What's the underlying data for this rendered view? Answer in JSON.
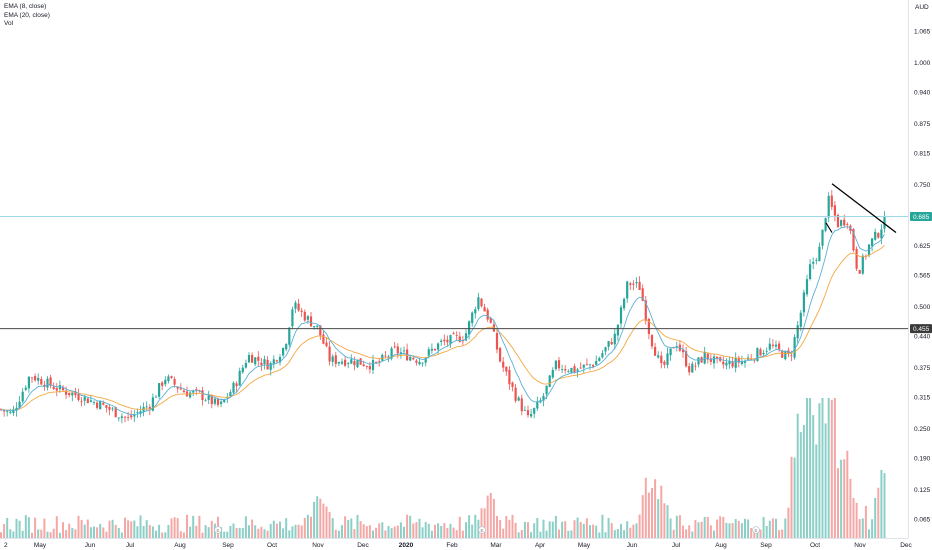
{
  "legend": {
    "ema8": "EMA (8, close)",
    "ema20": "EMA (20, close)",
    "vol": "Vol"
  },
  "currency": "AUD",
  "colors": {
    "up": "#26a69a",
    "down": "#ef5350",
    "vol_up": "#8ccfc7",
    "vol_down": "#f5a7a6",
    "ema8": "#5ab1d6",
    "ema20": "#f4a742",
    "current_line": "#9ed9e6",
    "hline": "#4a4a4a",
    "trendline": "#000000"
  },
  "chart_data": {
    "type": "candlestick",
    "ylabel_currency": "AUD",
    "y_ticks": [
      "1.065",
      "1.000",
      "0.940",
      "0.875",
      "0.815",
      "0.750",
      "0.625",
      "0.565",
      "0.500",
      "0.440",
      "0.375",
      "0.315",
      "0.250",
      "0.190",
      "0.125",
      "0.065"
    ],
    "y_tick_values": [
      1.065,
      1.0,
      0.94,
      0.875,
      0.815,
      0.75,
      0.625,
      0.565,
      0.5,
      0.44,
      0.375,
      0.315,
      0.25,
      0.19,
      0.125,
      0.065
    ],
    "x_ticks": [
      "2",
      "May",
      "Jun",
      "Jul",
      "Aug",
      "Sep",
      "Oct",
      "Nov",
      "Dec",
      "2020",
      "Feb",
      "Mar",
      "Apr",
      "May",
      "Jun",
      "Jul",
      "Aug",
      "Sep",
      "Oct",
      "Nov",
      "Dec"
    ],
    "x_tick_bold": [
      false,
      false,
      false,
      false,
      false,
      false,
      false,
      false,
      false,
      true,
      false,
      false,
      false,
      false,
      false,
      false,
      false,
      false,
      false,
      false,
      false
    ],
    "current_price": {
      "label": "0.685",
      "value": 0.685
    },
    "horizontal_line": {
      "label": "0.455",
      "value": 0.455
    },
    "trendlines": [
      {
        "from": [
          "Oct 2020",
          0.752
        ],
        "to": [
          "Nov 2020",
          0.655
        ]
      },
      {
        "from": [
          "Oct 2020",
          0.672
        ],
        "to": [
          "Oct 2020",
          0.652
        ]
      }
    ],
    "close_anchors": [
      {
        "x": 0,
        "v": 0.29
      },
      {
        "x": 12,
        "v": 0.28
      },
      {
        "x": 30,
        "v": 0.36
      },
      {
        "x": 60,
        "v": 0.33
      },
      {
        "x": 75,
        "v": 0.32
      },
      {
        "x": 100,
        "v": 0.3
      },
      {
        "x": 128,
        "v": 0.27
      },
      {
        "x": 150,
        "v": 0.3
      },
      {
        "x": 165,
        "v": 0.355
      },
      {
        "x": 185,
        "v": 0.325
      },
      {
        "x": 200,
        "v": 0.32
      },
      {
        "x": 220,
        "v": 0.295
      },
      {
        "x": 235,
        "v": 0.34
      },
      {
        "x": 248,
        "v": 0.4
      },
      {
        "x": 270,
        "v": 0.38
      },
      {
        "x": 285,
        "v": 0.42
      },
      {
        "x": 293,
        "v": 0.505
      },
      {
        "x": 305,
        "v": 0.48
      },
      {
        "x": 318,
        "v": 0.455
      },
      {
        "x": 330,
        "v": 0.39
      },
      {
        "x": 350,
        "v": 0.39
      },
      {
        "x": 375,
        "v": 0.38
      },
      {
        "x": 395,
        "v": 0.41
      },
      {
        "x": 420,
        "v": 0.39
      },
      {
        "x": 440,
        "v": 0.425
      },
      {
        "x": 465,
        "v": 0.44
      },
      {
        "x": 478,
        "v": 0.52
      },
      {
        "x": 490,
        "v": 0.47
      },
      {
        "x": 500,
        "v": 0.39
      },
      {
        "x": 515,
        "v": 0.32
      },
      {
        "x": 528,
        "v": 0.27
      },
      {
        "x": 542,
        "v": 0.31
      },
      {
        "x": 556,
        "v": 0.38
      },
      {
        "x": 575,
        "v": 0.37
      },
      {
        "x": 595,
        "v": 0.385
      },
      {
        "x": 615,
        "v": 0.44
      },
      {
        "x": 628,
        "v": 0.55
      },
      {
        "x": 640,
        "v": 0.54
      },
      {
        "x": 650,
        "v": 0.44
      },
      {
        "x": 662,
        "v": 0.37
      },
      {
        "x": 676,
        "v": 0.43
      },
      {
        "x": 690,
        "v": 0.37
      },
      {
        "x": 705,
        "v": 0.4
      },
      {
        "x": 720,
        "v": 0.38
      },
      {
        "x": 745,
        "v": 0.39
      },
      {
        "x": 770,
        "v": 0.42
      },
      {
        "x": 790,
        "v": 0.395
      },
      {
        "x": 800,
        "v": 0.48
      },
      {
        "x": 810,
        "v": 0.58
      },
      {
        "x": 820,
        "v": 0.62
      },
      {
        "x": 828,
        "v": 0.72
      },
      {
        "x": 838,
        "v": 0.67
      },
      {
        "x": 848,
        "v": 0.68
      },
      {
        "x": 858,
        "v": 0.57
      },
      {
        "x": 870,
        "v": 0.63
      },
      {
        "x": 878,
        "v": 0.65
      },
      {
        "x": 886,
        "v": 0.685
      }
    ],
    "volume_peaks": [
      {
        "x": 320,
        "h": 0.13
      },
      {
        "x": 490,
        "h": 0.11
      },
      {
        "x": 650,
        "h": 0.16
      },
      {
        "x": 658,
        "h": 0.13
      },
      {
        "x": 800,
        "h": 0.21
      },
      {
        "x": 808,
        "h": 0.26
      },
      {
        "x": 822,
        "h": 0.26
      },
      {
        "x": 830,
        "h": 0.27
      },
      {
        "x": 845,
        "h": 0.13
      },
      {
        "x": 885,
        "h": 0.11
      }
    ],
    "events": [
      {
        "label": "E",
        "x": "Sep 2019"
      },
      {
        "label": "E",
        "x": "Feb 2020"
      },
      {
        "label": "E",
        "x": "Aug 2020"
      }
    ]
  }
}
